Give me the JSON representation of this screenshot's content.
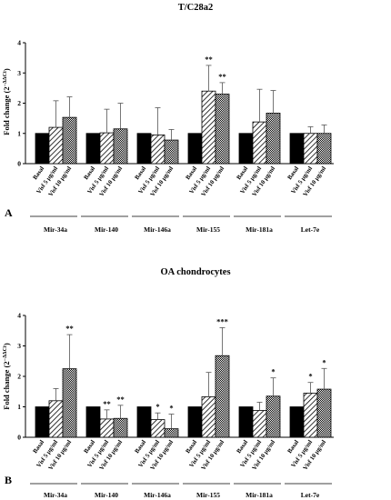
{
  "chart_data": [
    {
      "type": "bar",
      "title": "T/C28a2",
      "ylabel": "Fold change (2^-ΔΔCt)",
      "ylabel_main": "Fold change (2",
      "ylabel_sup": "−ΔΔCt",
      "ylabel_end": ")",
      "ylim": [
        0,
        4
      ],
      "yticks": [
        "0",
        "1",
        "2",
        "3",
        "4"
      ],
      "panel_label": "A",
      "levels": [
        "Basal",
        "Visf 5 µg/ml",
        "Visf 10 µg/ml"
      ],
      "categories": [
        "Mir-34a",
        "Mir-140",
        "Mir-146a",
        "Mir-155",
        "Mir-181a",
        "Let-7e"
      ],
      "series": [
        {
          "name": "Basal",
          "values": [
            1,
            1,
            1,
            1,
            1,
            1
          ],
          "errors": [
            0,
            0,
            0,
            0,
            0,
            0
          ],
          "stars": [
            "",
            "",
            "",
            "",
            "",
            ""
          ]
        },
        {
          "name": "Visf 5 µg/ml",
          "values": [
            1.2,
            1.02,
            0.95,
            2.4,
            1.38,
            1.0
          ],
          "errors": [
            0.88,
            0.78,
            0.9,
            0.85,
            1.08,
            0.22
          ],
          "stars": [
            "",
            "",
            "",
            "**",
            "",
            ""
          ]
        },
        {
          "name": "Visf 10 µg/ml",
          "values": [
            1.53,
            1.15,
            0.78,
            2.3,
            1.67,
            1.0
          ],
          "errors": [
            0.68,
            0.85,
            0.35,
            0.38,
            0.75,
            0.28
          ],
          "stars": [
            "",
            "",
            "",
            "**",
            "",
            ""
          ]
        }
      ]
    },
    {
      "type": "bar",
      "title": "OA chondrocytes",
      "ylabel": "Fold change (2^-ΔΔCt)",
      "ylabel_main": "Fold change (2",
      "ylabel_sup": "−ΔΔCt",
      "ylabel_end": ")",
      "ylim": [
        0,
        4
      ],
      "yticks": [
        "0",
        "1",
        "2",
        "3",
        "4"
      ],
      "panel_label": "B",
      "levels": [
        "Basal",
        "Visf 5 µg/ml",
        "Visf 10 µg/ml"
      ],
      "categories": [
        "Mir-34a",
        "Mir-140",
        "Mir-146a",
        "Mir-155",
        "Mir-181a",
        "Let-7e"
      ],
      "series": [
        {
          "name": "Basal",
          "values": [
            1,
            1,
            1,
            1,
            1,
            1
          ],
          "errors": [
            0,
            0,
            0,
            0,
            0,
            0
          ],
          "stars": [
            "",
            "",
            "",
            "",
            "",
            ""
          ]
        },
        {
          "name": "Visf 5 µg/ml",
          "values": [
            1.2,
            0.6,
            0.58,
            1.33,
            0.88,
            1.45
          ],
          "errors": [
            0.4,
            0.3,
            0.22,
            0.8,
            0.27,
            0.35
          ],
          "stars": [
            "",
            "**",
            "*",
            "",
            "",
            "*"
          ]
        },
        {
          "name": "Visf 10 µg/ml",
          "values": [
            2.25,
            0.62,
            0.28,
            2.68,
            1.35,
            1.58
          ],
          "errors": [
            1.12,
            0.43,
            0.48,
            0.92,
            0.6,
            0.68
          ],
          "stars": [
            "**",
            "**",
            "*",
            "***",
            "*",
            "*"
          ]
        }
      ]
    }
  ]
}
